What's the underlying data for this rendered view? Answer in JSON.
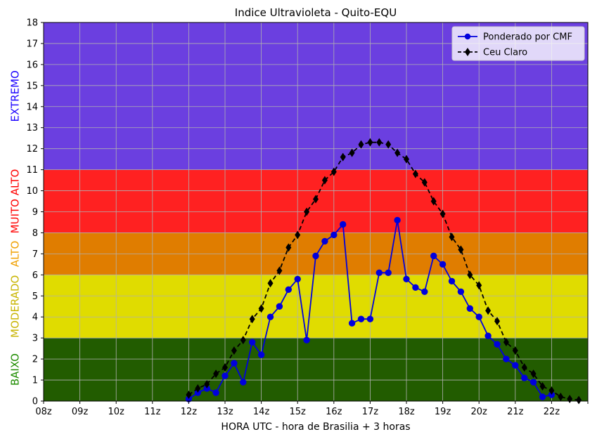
{
  "chart_data": {
    "type": "line",
    "title": "Indice Ultravioleta - Quito-EQU",
    "xlabel": "HORA UTC - hora de Brasilia + 3 horas",
    "ylabel": "",
    "xlim": [
      8,
      23
    ],
    "ylim": [
      0,
      18
    ],
    "grid": true,
    "legend_position": "top-right",
    "x_tick_labels": [
      "08z",
      "09z",
      "10z",
      "11z",
      "12z",
      "13z",
      "14z",
      "15z",
      "16z",
      "17z",
      "18z",
      "19z",
      "20z",
      "21z",
      "22z",
      ""
    ],
    "y_tick_labels": [
      "0",
      "1",
      "2",
      "3",
      "4",
      "5",
      "6",
      "7",
      "8",
      "9",
      "10",
      "11",
      "12",
      "13",
      "14",
      "15",
      "16",
      "17",
      "18"
    ],
    "bands": [
      {
        "label": "BAIXO",
        "from": 0,
        "to": 3,
        "color": "#225c00",
        "label_color": "#1e8c00"
      },
      {
        "label": "MODERADO",
        "from": 3,
        "to": 6,
        "color": "#e0dc00",
        "label_color": "#c8b400"
      },
      {
        "label": "ALTO",
        "from": 6,
        "to": 8,
        "color": "#e07d00",
        "label_color": "#f0a000"
      },
      {
        "label": "MUITO ALTO",
        "from": 8,
        "to": 11,
        "color": "#ff2121",
        "label_color": "#ff0000"
      },
      {
        "label": "EXTREMO",
        "from": 11,
        "to": 18,
        "color": "#6b3fe0",
        "label_color": "#1a00ff"
      }
    ],
    "series": [
      {
        "name": "Ponderado por CMF",
        "color": "#0000dd",
        "marker": "circle",
        "line": "solid",
        "x": [
          12.0,
          12.25,
          12.5,
          12.75,
          13.0,
          13.25,
          13.5,
          13.75,
          14.0,
          14.25,
          14.5,
          14.75,
          15.0,
          15.25,
          15.5,
          15.75,
          16.0,
          16.25,
          16.5,
          16.75,
          17.0,
          17.25,
          17.5,
          17.75,
          18.0,
          18.25,
          18.5,
          18.75,
          19.0,
          19.25,
          19.5,
          19.75,
          20.0,
          20.25,
          20.5,
          20.75,
          21.0,
          21.25,
          21.5,
          21.75,
          22.0
        ],
        "y": [
          0.1,
          0.4,
          0.6,
          0.4,
          1.2,
          1.8,
          0.9,
          2.8,
          2.2,
          4.0,
          4.5,
          5.3,
          5.8,
          2.9,
          6.9,
          7.6,
          7.9,
          8.4,
          3.7,
          3.9,
          3.9,
          6.1,
          6.1,
          8.6,
          5.8,
          5.4,
          5.2,
          6.9,
          6.5,
          5.7,
          5.2,
          4.4,
          4.0,
          3.1,
          2.7,
          2.0,
          1.7,
          1.1,
          0.9,
          0.2,
          0.3
        ]
      },
      {
        "name": "Ceu Claro",
        "color": "#000000",
        "marker": "diamond",
        "line": "dashed",
        "x": [
          12.0,
          12.25,
          12.5,
          12.75,
          13.0,
          13.25,
          13.5,
          13.75,
          14.0,
          14.25,
          14.5,
          14.75,
          15.0,
          15.25,
          15.5,
          15.75,
          16.0,
          16.25,
          16.5,
          16.75,
          17.0,
          17.25,
          17.5,
          17.75,
          18.0,
          18.25,
          18.5,
          18.75,
          19.0,
          19.25,
          19.5,
          19.75,
          20.0,
          20.25,
          20.5,
          20.75,
          21.0,
          21.25,
          21.5,
          21.75,
          22.0,
          22.25,
          22.5,
          22.75
        ],
        "y": [
          0.3,
          0.6,
          0.8,
          1.3,
          1.6,
          2.4,
          2.9,
          3.9,
          4.4,
          5.6,
          6.2,
          7.3,
          7.9,
          9.0,
          9.6,
          10.5,
          10.9,
          11.6,
          11.8,
          12.2,
          12.3,
          12.3,
          12.2,
          11.8,
          11.5,
          10.8,
          10.4,
          9.5,
          8.9,
          7.8,
          7.2,
          6.0,
          5.5,
          4.3,
          3.8,
          2.8,
          2.4,
          1.6,
          1.3,
          0.7,
          0.5,
          0.2,
          0.1,
          0.05
        ]
      }
    ]
  }
}
